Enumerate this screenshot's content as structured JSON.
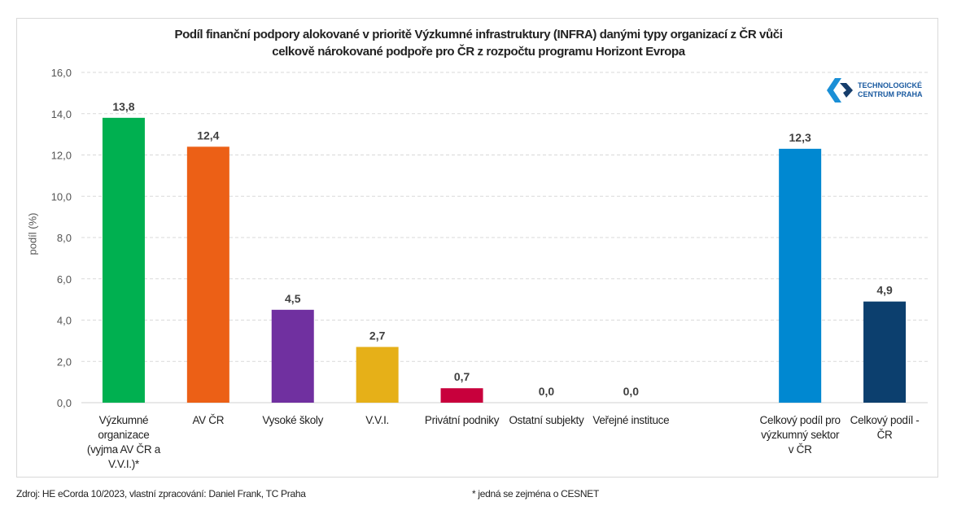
{
  "chart_data": {
    "type": "bar",
    "title_line1": "Podíl finanční podpory alokované v prioritě Výzkumné infrastruktury (INFRA) danými typy organizací z ČR vůči",
    "title_line2": "celkově nárokované podpoře pro ČR z rozpočtu programu Horizont Evropa",
    "ylabel": "podíl (%)",
    "xlabel": "",
    "ylim": [
      0,
      16
    ],
    "yticks": [
      "0,0",
      "2,0",
      "4,0",
      "6,0",
      "8,0",
      "10,0",
      "12,0",
      "14,0",
      "16,0"
    ],
    "grid": true,
    "categories": [
      "Výzkumné organizace (vyjma AV ČR a V.V.I.)*",
      "AV ČR",
      "Vysoké školy",
      "V.V.I.",
      "Privátní podniky",
      "Ostatní subjekty",
      "Veřejné instituce",
      "",
      "Celkový podíl pro výzkumný sektor v ČR",
      "Celkový podíl - ČR"
    ],
    "values": [
      13.8,
      12.4,
      4.5,
      2.7,
      0.7,
      0.0,
      0.0,
      null,
      12.3,
      4.9
    ],
    "data_labels": [
      "13,8",
      "12,4",
      "4,5",
      "2,7",
      "0,7",
      "0,0",
      "0,0",
      "",
      "12,3",
      "4,9"
    ],
    "colors": [
      "#00b050",
      "#ec6016",
      "#7030a0",
      "#e6b018",
      "#c8003c",
      "#888888",
      "#888888",
      "#ffffff",
      "#0088d1",
      "#0c3f6e"
    ]
  },
  "logo": {
    "line1": "TECHNOLOGICKÉ",
    "line2": "CENTRUM PRAHA"
  },
  "footer": {
    "source": "Zdroj: HE eCorda 10/2023, vlastní zpracování: Daniel Frank, TC Praha",
    "note": "* jedná se zejména o CESNET"
  }
}
